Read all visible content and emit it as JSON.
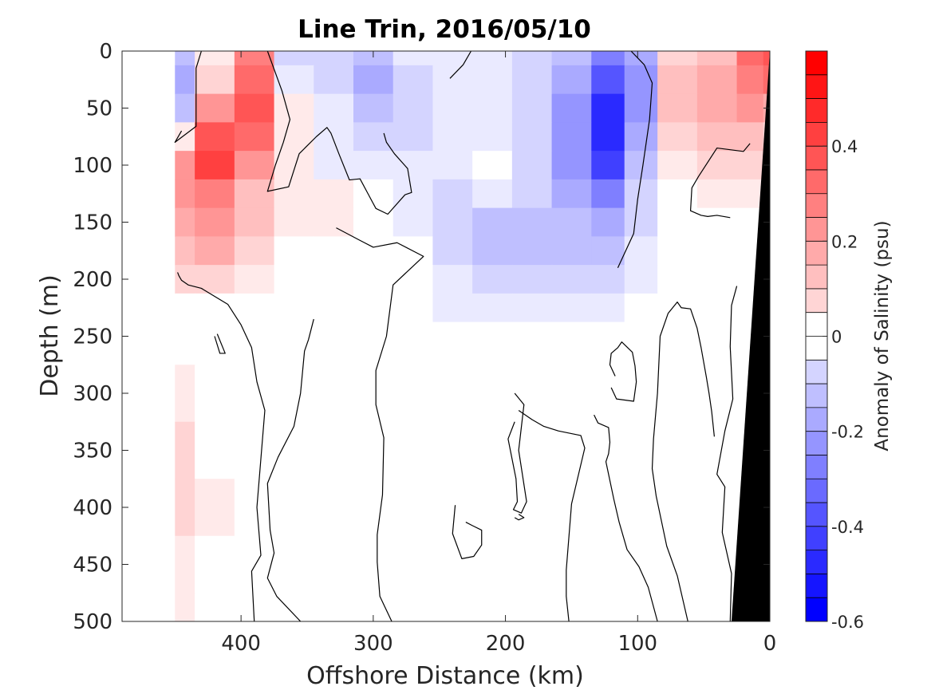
{
  "chart_data": {
    "type": "heatmap",
    "title": "Line Trin, 2016/05/10",
    "xlabel": "Offshore Distance (km)",
    "ylabel": "Depth (m)",
    "colorbar_label": "Anomaly of Salinity (psu)",
    "xlim": [
      490,
      0
    ],
    "ylim": [
      500,
      0
    ],
    "x_reversed": true,
    "y_reversed": true,
    "grid": false,
    "clim": [
      -0.6,
      0.6
    ],
    "contour_interval": 0.05,
    "xticks": [
      400,
      300,
      200,
      100,
      0
    ],
    "yticks": [
      0,
      50,
      100,
      150,
      200,
      250,
      300,
      350,
      400,
      450,
      500
    ],
    "colorbar_ticks": [
      0.4,
      0.2,
      0,
      -0.2,
      -0.4,
      -0.6
    ],
    "colorbar_tick_labels": [
      "0.4",
      "0.2",
      "0",
      "-0.2",
      "-0.4",
      "-0.6"
    ],
    "colors": {
      "positive": "#ff0000",
      "negative": "#0000ff",
      "neutral": "#ffffff",
      "zero_contour": "#000000",
      "bottom_topography": "#000000"
    },
    "x_stations": [
      450,
      420,
      390,
      360,
      330,
      300,
      270,
      240,
      210,
      180,
      150,
      120,
      100,
      70,
      40,
      10,
      0
    ],
    "depths": [
      0,
      25,
      50,
      75,
      100,
      125,
      150,
      175,
      200,
      225,
      250,
      300,
      350,
      400,
      450,
      500
    ],
    "values": [
      [
        -0.15,
        0.05,
        0.3,
        -0.1,
        -0.1,
        -0.15,
        -0.05,
        -0.05,
        -0.05,
        -0.1,
        -0.15,
        -0.3,
        -0.2,
        0.1,
        0.15,
        0.35,
        0.4
      ],
      [
        -0.2,
        0.1,
        0.35,
        -0.05,
        -0.1,
        -0.2,
        -0.1,
        -0.05,
        -0.05,
        -0.1,
        -0.2,
        -0.4,
        -0.25,
        0.15,
        0.2,
        0.3,
        0.35
      ],
      [
        -0.15,
        0.25,
        0.4,
        0.05,
        -0.05,
        -0.15,
        -0.1,
        -0.05,
        -0.05,
        -0.1,
        -0.25,
        -0.5,
        -0.25,
        0.15,
        0.2,
        0.25,
        0.2
      ],
      [
        0.05,
        0.4,
        0.35,
        0.05,
        -0.05,
        -0.1,
        -0.1,
        -0.05,
        -0.05,
        -0.1,
        -0.25,
        -0.5,
        -0.2,
        0.1,
        0.15,
        0.15,
        0.1
      ],
      [
        0.25,
        0.45,
        0.25,
        0.05,
        -0.05,
        -0.05,
        -0.05,
        -0.05,
        0.0,
        -0.1,
        -0.25,
        -0.45,
        -0.15,
        0.05,
        0.1,
        0.1,
        0.05
      ],
      [
        0.25,
        0.3,
        0.15,
        0.05,
        0.05,
        0.0,
        -0.05,
        -0.1,
        -0.05,
        -0.1,
        -0.2,
        -0.3,
        -0.1,
        0.0,
        0.05,
        0.05,
        0.0
      ],
      [
        0.2,
        0.25,
        0.15,
        0.05,
        0.05,
        0.0,
        -0.05,
        -0.1,
        -0.15,
        -0.15,
        -0.15,
        -0.2,
        -0.1,
        0.0,
        0.0,
        0.0,
        0.0
      ],
      [
        0.15,
        0.2,
        0.1,
        0.0,
        0.0,
        0.0,
        0.0,
        -0.1,
        -0.15,
        -0.15,
        -0.15,
        -0.15,
        -0.05,
        0.0,
        0.0,
        0.0,
        0.0
      ],
      [
        0.1,
        0.1,
        0.05,
        0.0,
        0.0,
        0.0,
        0.0,
        -0.05,
        -0.1,
        -0.1,
        -0.1,
        -0.1,
        -0.05,
        0.0,
        0.0,
        0.0,
        0.0
      ],
      [
        0.0,
        0.0,
        0.0,
        0.0,
        0.0,
        0.0,
        0.0,
        -0.05,
        -0.05,
        -0.05,
        -0.05,
        -0.05,
        0.0,
        0.0,
        0.0,
        0.0,
        0.0
      ],
      [
        0.0,
        0.0,
        0.0,
        0.0,
        0.0,
        0.0,
        0.0,
        0.0,
        0.0,
        0.0,
        0.0,
        0.0,
        0.0,
        0.0,
        0.0,
        0.0,
        0.0
      ],
      [
        0.05,
        0.0,
        0.0,
        0.0,
        0.0,
        0.0,
        0.0,
        0.0,
        0.0,
        0.0,
        0.0,
        0.0,
        0.0,
        0.0,
        0.0,
        0.0,
        0.0
      ],
      [
        0.1,
        0.0,
        0.0,
        0.0,
        0.0,
        0.0,
        0.0,
        0.0,
        0.0,
        0.0,
        0.0,
        0.0,
        0.0,
        0.0,
        0.0,
        0.0,
        0.0
      ],
      [
        0.1,
        0.05,
        0.0,
        0.0,
        0.0,
        0.0,
        0.0,
        0.0,
        0.0,
        0.0,
        0.0,
        0.0,
        0.0,
        0.0,
        0.0,
        0.0,
        0.0
      ],
      [
        0.05,
        0.0,
        0.0,
        0.0,
        0.0,
        0.0,
        0.0,
        0.0,
        0.0,
        0.0,
        0.0,
        0.0,
        0.0,
        0.0,
        0.0,
        0.0,
        0.0
      ],
      [
        0.05,
        0.0,
        0.0,
        0.0,
        0.0,
        0.0,
        0.0,
        0.0,
        0.0,
        0.0,
        0.0,
        0.0,
        0.0,
        0.0,
        0.0,
        0.0,
        0.0
      ]
    ],
    "no_data_regions": [
      {
        "x_range": [
          490,
          450
        ],
        "depth_range": [
          0,
          500
        ]
      }
    ],
    "bottom_topography": [
      {
        "x": 0,
        "depth": 0
      },
      {
        "x": 0,
        "depth": 500
      },
      {
        "x": 29,
        "depth": 500
      }
    ],
    "zero_contours": [
      [
        [
          445,
          70
        ],
        [
          450,
          80
        ],
        [
          434,
          66
        ],
        [
          434,
          15
        ],
        [
          430,
          0
        ]
      ],
      [
        [
          380,
          0
        ],
        [
          369,
          35
        ],
        [
          363,
          60
        ],
        [
          368,
          80
        ],
        [
          374,
          100
        ],
        [
          380,
          123
        ],
        [
          364,
          119
        ],
        [
          356,
          90
        ],
        [
          343,
          75
        ],
        [
          335,
          67
        ],
        [
          332,
          72
        ],
        [
          326,
          90
        ],
        [
          318,
          113
        ],
        [
          310,
          112
        ],
        [
          304,
          125
        ],
        [
          298,
          138
        ],
        [
          289,
          143
        ],
        [
          276,
          126
        ],
        [
          271,
          124
        ],
        [
          274,
          103
        ],
        [
          284,
          90
        ],
        [
          290,
          80
        ],
        [
          292,
          72
        ]
      ],
      [
        [
          226,
          0
        ],
        [
          232,
          12
        ],
        [
          242,
          24
        ]
      ],
      [
        [
          105,
          0
        ],
        [
          95,
          12
        ],
        [
          89,
          28
        ],
        [
          91,
          60
        ],
        [
          96,
          100
        ],
        [
          100,
          130
        ],
        [
          103,
          160
        ],
        [
          115,
          190
        ]
      ],
      [
        [
          15,
          81
        ],
        [
          20,
          88
        ],
        [
          40,
          85
        ],
        [
          54,
          110
        ],
        [
          59,
          120
        ],
        [
          60,
          140
        ],
        [
          56,
          142
        ],
        [
          52,
          144
        ],
        [
          47,
          145
        ],
        [
          40,
          144
        ],
        [
          30,
          146
        ]
      ],
      [
        [
          390,
          500
        ],
        [
          392,
          456
        ],
        [
          385,
          442
        ],
        [
          388,
          400
        ],
        [
          382,
          315
        ],
        [
          388,
          290
        ],
        [
          392,
          260
        ],
        [
          400,
          240
        ],
        [
          410,
          222
        ],
        [
          430,
          208
        ],
        [
          440,
          205
        ],
        [
          445,
          201
        ],
        [
          447,
          197
        ],
        [
          448,
          194
        ]
      ],
      [
        [
          355,
          500
        ],
        [
          373,
          478
        ],
        [
          380,
          462
        ],
        [
          375,
          440
        ],
        [
          378,
          420
        ],
        [
          380,
          379
        ],
        [
          372,
          356
        ],
        [
          360,
          329
        ],
        [
          355,
          300
        ],
        [
          352,
          263
        ],
        [
          349,
          253
        ],
        [
          345,
          235
        ]
      ],
      [
        [
          286,
          500
        ],
        [
          295,
          478
        ],
        [
          297,
          448
        ],
        [
          297,
          424
        ],
        [
          293,
          389
        ],
        [
          292,
          339
        ],
        [
          298,
          310
        ],
        [
          298,
          280
        ],
        [
          290,
          250
        ],
        [
          285,
          205
        ],
        [
          262,
          180
        ],
        [
          282,
          168
        ],
        [
          300,
          172
        ],
        [
          310,
          166
        ],
        [
          328,
          155
        ]
      ],
      [
        [
          420,
          250
        ],
        [
          416,
          265
        ],
        [
          412,
          265
        ],
        [
          418,
          248
        ]
      ],
      [
        [
          193,
          325
        ],
        [
          198,
          340
        ],
        [
          192,
          375
        ],
        [
          191,
          395
        ],
        [
          194,
          402
        ],
        [
          188,
          405
        ],
        [
          184,
          395
        ],
        [
          190,
          350
        ],
        [
          186,
          310
        ],
        [
          193,
          300
        ]
      ],
      [
        [
          238,
          398
        ],
        [
          240,
          423
        ],
        [
          233,
          445
        ],
        [
          224,
          443
        ],
        [
          218,
          433
        ],
        [
          218,
          420
        ],
        [
          225,
          416
        ],
        [
          230,
          413
        ]
      ],
      [
        [
          193,
          409
        ],
        [
          190,
          411
        ],
        [
          186,
          409
        ],
        [
          190,
          406
        ]
      ],
      [
        [
          120,
          295
        ],
        [
          116,
          305
        ],
        [
          103,
          307
        ],
        [
          101,
          290
        ],
        [
          102,
          276
        ],
        [
          104,
          264
        ],
        [
          112,
          255
        ],
        [
          115,
          260
        ],
        [
          120,
          265
        ],
        [
          121,
          275
        ],
        [
          117,
          285
        ]
      ],
      [
        [
          152,
          500
        ],
        [
          154,
          478
        ],
        [
          154,
          455
        ],
        [
          150,
          397
        ],
        [
          140,
          348
        ],
        [
          143,
          337
        ],
        [
          160,
          333
        ],
        [
          171,
          329
        ],
        [
          180,
          323
        ],
        [
          190,
          315
        ]
      ],
      [
        [
          85,
          500
        ],
        [
          92,
          470
        ],
        [
          99,
          452
        ],
        [
          108,
          437
        ],
        [
          114,
          413
        ],
        [
          118,
          393
        ],
        [
          124,
          360
        ],
        [
          122,
          353
        ],
        [
          121,
          343
        ],
        [
          122,
          330
        ],
        [
          130,
          326
        ],
        [
          133,
          319
        ]
      ],
      [
        [
          62,
          500
        ],
        [
          70,
          460
        ],
        [
          78,
          434
        ],
        [
          86,
          390
        ],
        [
          89,
          366
        ],
        [
          88,
          340
        ],
        [
          85,
          300
        ],
        [
          83,
          250
        ],
        [
          77,
          230
        ],
        [
          70,
          220
        ],
        [
          67,
          225
        ],
        [
          60,
          226
        ],
        [
          55,
          243
        ],
        [
          52,
          260
        ],
        [
          48,
          286
        ],
        [
          46,
          300
        ],
        [
          44,
          316
        ],
        [
          42,
          338
        ]
      ],
      [
        [
          30,
          500
        ],
        [
          29,
          458
        ],
        [
          36,
          422
        ],
        [
          34,
          382
        ],
        [
          40,
          371
        ],
        [
          34,
          333
        ],
        [
          28,
          305
        ],
        [
          30,
          259
        ],
        [
          29,
          223
        ],
        [
          25,
          206
        ]
      ]
    ]
  }
}
